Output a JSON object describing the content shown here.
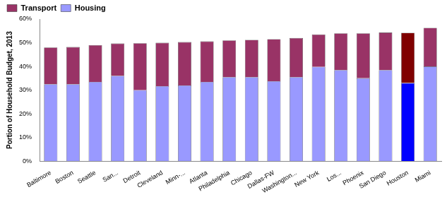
{
  "chart_data": {
    "type": "bar",
    "stacked": true,
    "ylabel": "Portion of Household Budget, 2013",
    "categories": [
      "Baltimore",
      "Boston",
      "Seattle",
      "San...",
      "Detroit",
      "Cleveland",
      "Minn-...",
      "Atlanta",
      "Philadelphia",
      "Chicago",
      "Dallas-FW",
      "Washington...",
      "New York",
      "Los...",
      "Phoenix",
      "San Diego",
      "Houston",
      "Miami"
    ],
    "series": [
      {
        "name": "Housing",
        "color": "#9999ff",
        "colors": [
          "#9999ff",
          "#9999ff",
          "#9999ff",
          "#9999ff",
          "#9999ff",
          "#9999ff",
          "#9999ff",
          "#9999ff",
          "#9999ff",
          "#9999ff",
          "#9999ff",
          "#9999ff",
          "#9999ff",
          "#9999ff",
          "#9999ff",
          "#9999ff",
          "#0000ff",
          "#9999ff"
        ],
        "values": [
          32.5,
          32.5,
          33.5,
          36,
          30,
          31.7,
          32,
          33.5,
          35.5,
          35.5,
          33.8,
          35.5,
          39.8,
          38.5,
          35,
          38.5,
          33,
          40
        ]
      },
      {
        "name": "Transport",
        "color": "#993366",
        "colors": [
          "#993366",
          "#993366",
          "#993366",
          "#993366",
          "#993366",
          "#993366",
          "#993366",
          "#993366",
          "#993366",
          "#993366",
          "#993366",
          "#993366",
          "#993366",
          "#993366",
          "#993366",
          "#993366",
          "#800000",
          "#993366"
        ],
        "values": [
          15.5,
          15.7,
          15.5,
          13.7,
          19.8,
          18.3,
          18.3,
          17.1,
          15.5,
          15.7,
          17.7,
          16.5,
          13.7,
          15.5,
          19,
          15.8,
          21.2,
          16.3
        ]
      }
    ],
    "ylim": [
      0,
      60
    ],
    "yticks": [
      {
        "value": 0,
        "label": "0%"
      },
      {
        "value": 10,
        "label": "10%"
      },
      {
        "value": 20,
        "label": "20%"
      },
      {
        "value": 30,
        "label": "30%"
      },
      {
        "value": 40,
        "label": "40%"
      },
      {
        "value": 50,
        "label": "50%"
      },
      {
        "value": 60,
        "label": "60%"
      }
    ],
    "grid": false,
    "legend": "upper left"
  }
}
